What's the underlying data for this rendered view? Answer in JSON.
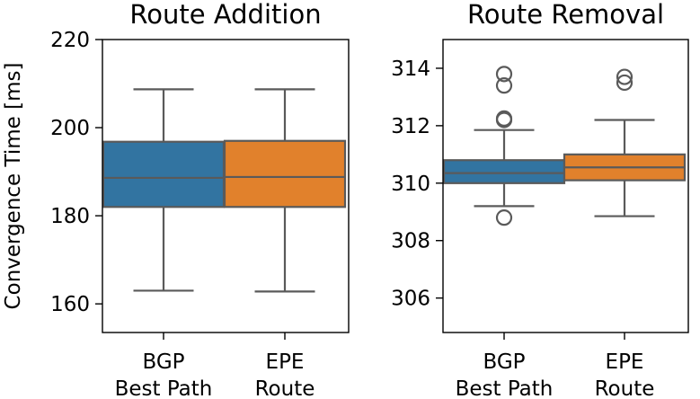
{
  "chart_data": [
    {
      "type": "box",
      "title": "Route Addition",
      "ylabel": "Convergence Time [ms]",
      "ylim": [
        153.5,
        220
      ],
      "yticks": [
        160,
        180,
        200,
        220
      ],
      "categories": [
        "BGP\nBest Path",
        "EPE\nRoute"
      ],
      "boxes": [
        {
          "category": "BGP\nBest Path",
          "whislo": 163.0,
          "q1": 182.0,
          "median": 188.6,
          "q3": 196.8,
          "whishi": 208.7,
          "fliers": [],
          "color": "#3274a1"
        },
        {
          "category": "EPE\nRoute",
          "whislo": 162.8,
          "q1": 182.0,
          "median": 188.8,
          "q3": 197.0,
          "whishi": 208.7,
          "fliers": [],
          "color": "#e1812c"
        }
      ]
    },
    {
      "type": "box",
      "title": "Route Removal",
      "ylabel": "",
      "ylim": [
        304.8,
        315.0
      ],
      "yticks": [
        306,
        308,
        310,
        312,
        314
      ],
      "categories": [
        "BGP\nBest Path",
        "EPE\nRoute"
      ],
      "boxes": [
        {
          "category": "BGP\nBest Path",
          "whislo": 309.2,
          "q1": 310.0,
          "median": 310.35,
          "q3": 310.8,
          "whishi": 311.85,
          "fliers": [
            308.8,
            312.2,
            312.25,
            313.4,
            313.8
          ],
          "color": "#3274a1"
        },
        {
          "category": "EPE\nRoute",
          "whislo": 308.85,
          "q1": 310.1,
          "median": 310.55,
          "q3": 311.0,
          "whishi": 312.2,
          "fliers": [
            313.5,
            313.7
          ],
          "color": "#e1812c"
        }
      ]
    }
  ]
}
